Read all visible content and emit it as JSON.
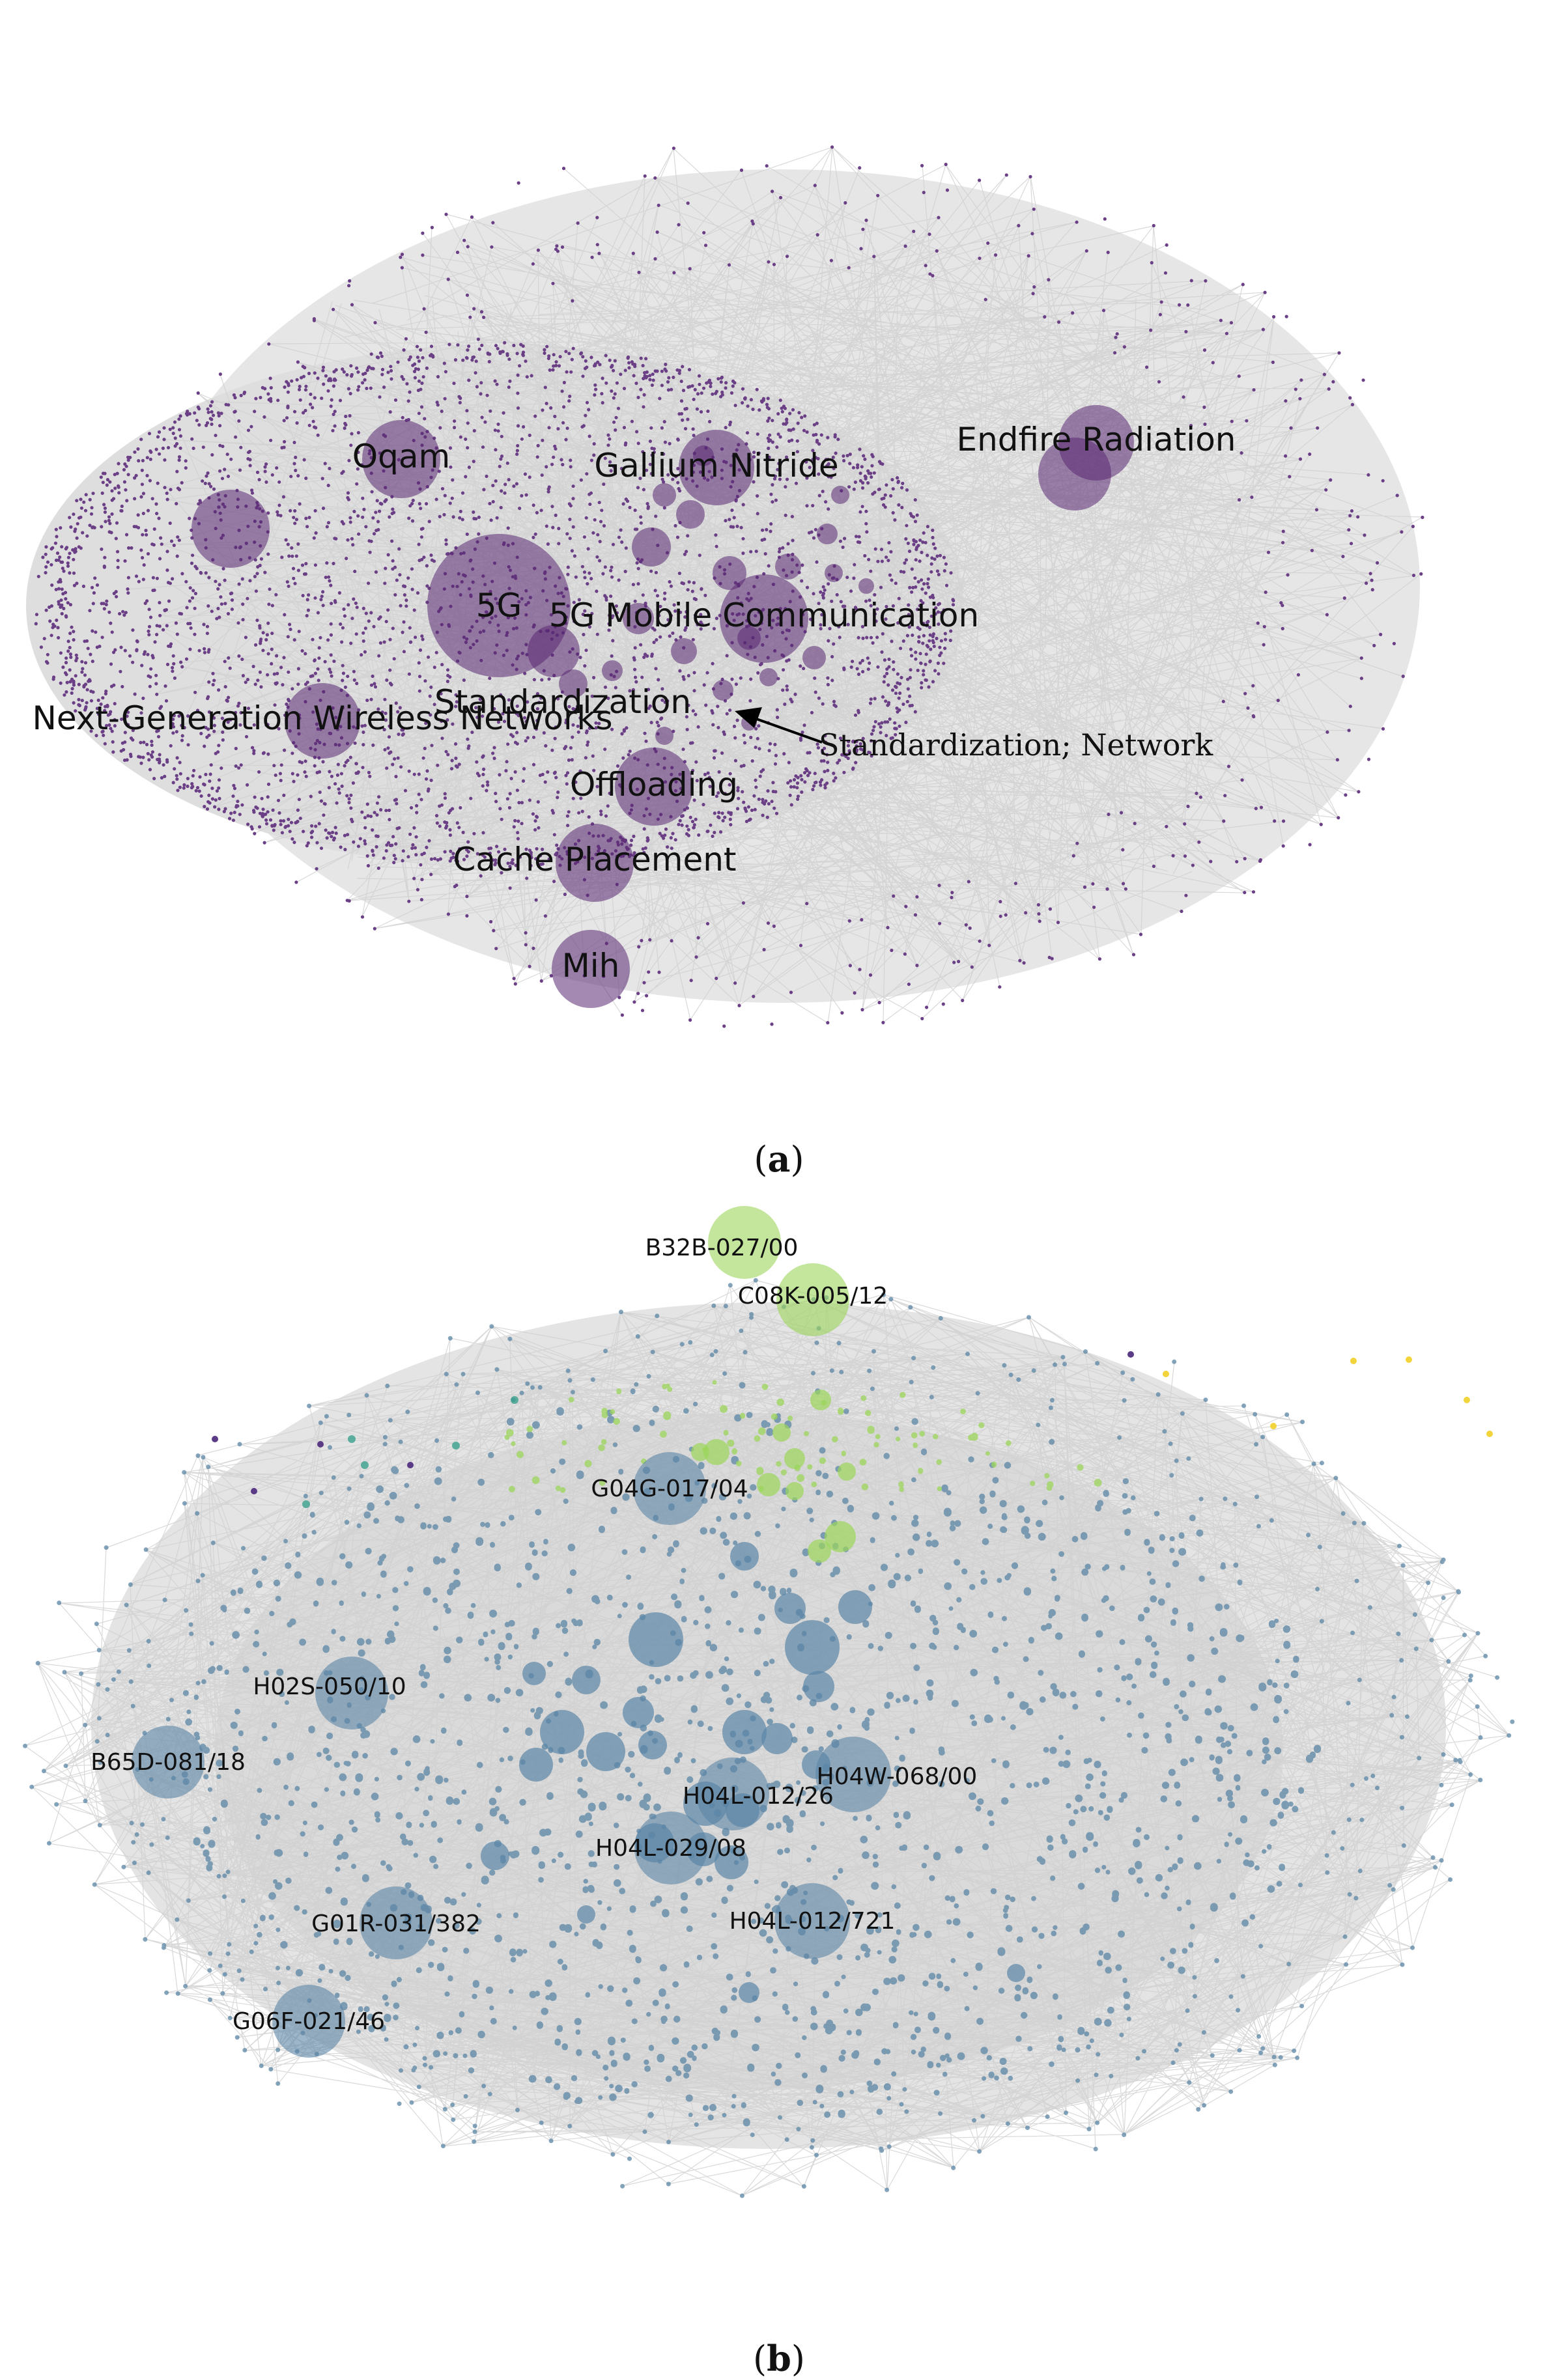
{
  "panel_a": {
    "caption_letter": "a",
    "colors": {
      "node": "#6b3f86",
      "hub": "#5a2873",
      "edge": "#dcdcdc"
    },
    "hub_labels": [
      "Oqam",
      "Gallium Nitride",
      "Endfire Radiation",
      "5G",
      "5G Mobile Communication",
      "Standardization",
      "Next-Generation Wireless Networks",
      "Offloading",
      "Cache Placement",
      "Mih"
    ],
    "annotation": "Standardization; Network"
  },
  "panel_b": {
    "caption_letter": "b",
    "colors": {
      "blue": "#5b86a6",
      "green": "#9bd65a",
      "teal": "#3aa08c",
      "purple": "#5b3a86",
      "yellow": "#f2d43c",
      "edge": "#dcdcdc"
    },
    "hub_labels": [
      "B32B-027/00",
      "C08K-005/12",
      "G04G-017/04",
      "H02S-050/10",
      "B65D-081/18",
      "H04W-068/00",
      "H04L-012/26",
      "H04L-029/08",
      "G01R-031/382",
      "H04L-012/721",
      "G06F-021/46"
    ]
  }
}
